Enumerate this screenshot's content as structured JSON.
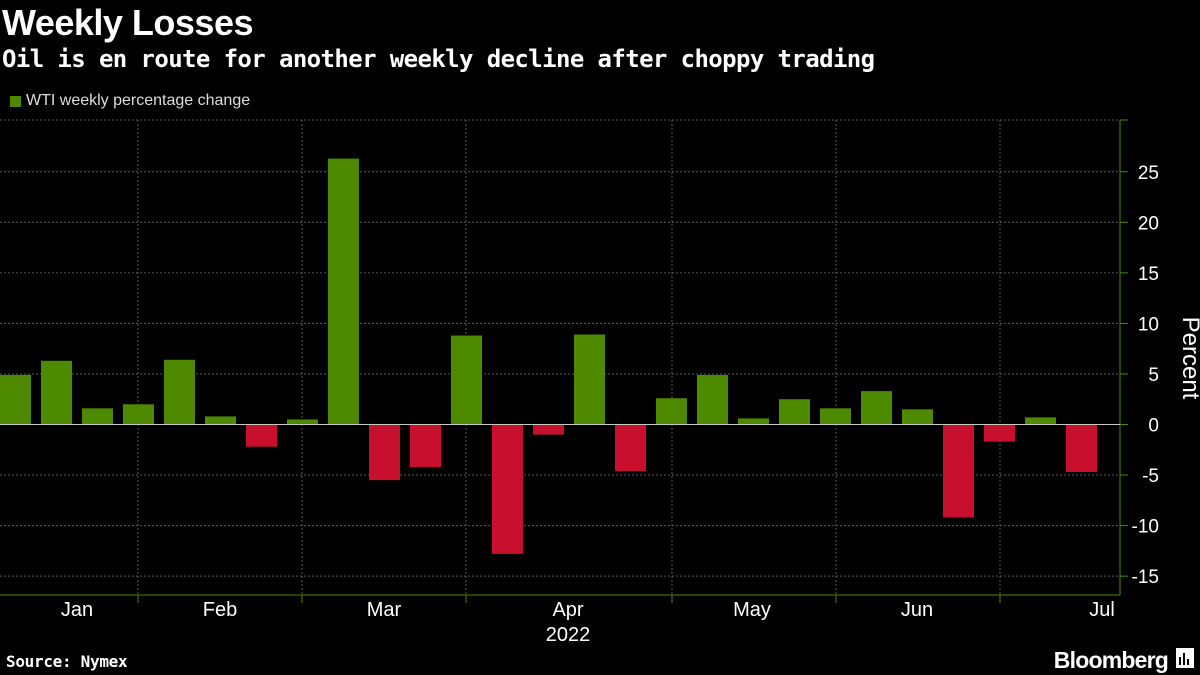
{
  "header": {
    "title": "Weekly Losses",
    "subtitle": "Oil is en route for another weekly decline after choppy trading"
  },
  "footer": {
    "source": "Source: Nymex",
    "brand": "Bloomberg"
  },
  "colors": {
    "positive": "#4d8a00",
    "negative": "#c8102e",
    "grid": "#5a5a5a",
    "axis": "#4d8a00",
    "background": "#000000"
  },
  "chart_data": {
    "type": "bar",
    "title": "Weekly Losses",
    "subtitle": "Oil is en route for another weekly decline after choppy trading",
    "legend": [
      "WTI weekly percentage change"
    ],
    "legend_position": "top-left",
    "xlabel": "2022",
    "ylabel": "Percent",
    "ylim": [
      -16.5,
      30
    ],
    "yticks": [
      -15,
      -10,
      -5,
      0,
      5,
      10,
      15,
      20,
      25
    ],
    "grid": true,
    "month_labels": [
      "Jan",
      "Feb",
      "Mar",
      "Apr",
      "May",
      "Jun",
      "Jul"
    ],
    "year_label": "2022",
    "series": [
      {
        "name": "WTI weekly percentage change",
        "values": [
          4.9,
          6.3,
          1.6,
          2.0,
          6.4,
          0.8,
          -2.2,
          0.5,
          26.3,
          -5.5,
          -4.2,
          8.8,
          -12.8,
          -1.0,
          8.9,
          -4.6,
          2.6,
          4.9,
          0.6,
          2.5,
          1.6,
          3.3,
          1.5,
          -9.2,
          -1.7,
          0.7,
          -4.7
        ]
      }
    ]
  }
}
